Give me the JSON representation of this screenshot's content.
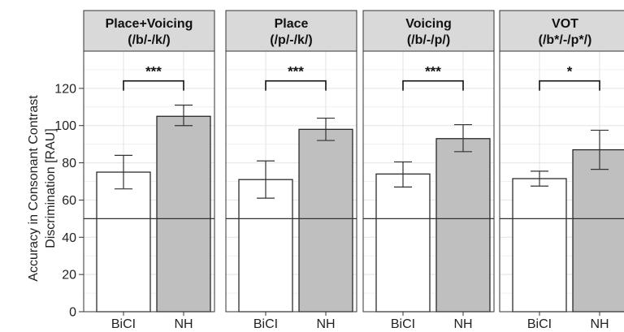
{
  "chart_data": {
    "type": "bar",
    "ylabel_lines": [
      "Accuracy in Consonant Contrast",
      "Discrimination [RAU]"
    ],
    "ylim": [
      0,
      140
    ],
    "yticks": [
      0,
      20,
      40,
      60,
      80,
      100,
      120
    ],
    "ytick_labels": [
      "0",
      "20",
      "40",
      "60",
      "80",
      "100",
      "120"
    ],
    "reference_line": 50,
    "grid": true,
    "categories": [
      "BiCI",
      "NH"
    ],
    "colors": {
      "BiCI": "#ffffff",
      "NH": "#bfbfbf",
      "strip": "#d9d9d9"
    },
    "panels": [
      {
        "title_lines": [
          "Place+Voicing",
          "(/b/-/k/)"
        ],
        "values": [
          75,
          105
        ],
        "errors": [
          [
            66,
            84
          ],
          [
            100,
            111
          ]
        ],
        "significance": "***"
      },
      {
        "title_lines": [
          "Place",
          "(/p/-/k/)"
        ],
        "values": [
          71,
          98
        ],
        "errors": [
          [
            61,
            81
          ],
          [
            92,
            104
          ]
        ],
        "significance": "***"
      },
      {
        "title_lines": [
          "Voicing",
          "(/b/-/p/)"
        ],
        "values": [
          74,
          93
        ],
        "errors": [
          [
            67,
            80.5
          ],
          [
            86,
            100.5
          ]
        ],
        "significance": "***"
      },
      {
        "title_lines": [
          "VOT",
          "(/b*/-/p*/)"
        ],
        "values": [
          71.5,
          87
        ],
        "errors": [
          [
            67.5,
            75.5
          ],
          [
            76.5,
            97.5
          ]
        ],
        "significance": "*"
      }
    ]
  }
}
